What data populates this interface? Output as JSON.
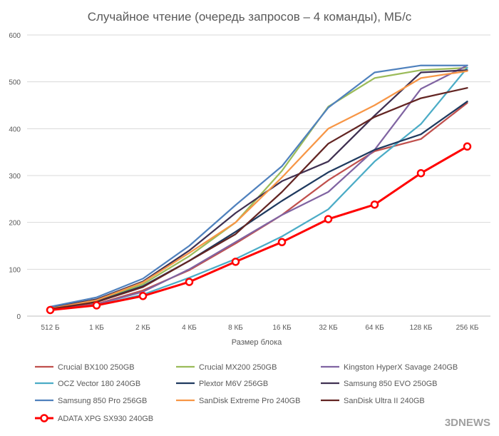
{
  "chart_data": {
    "type": "line",
    "title": "Случайное чтение (очередь запросов – 4 команды), МБ/с",
    "xlabel": "Размер блока",
    "ylabel": "",
    "categories": [
      "512 Б",
      "1 КБ",
      "2 КБ",
      "4 КБ",
      "8 КБ",
      "16 КБ",
      "32 КБ",
      "64 КБ",
      "128 КБ",
      "256 КБ"
    ],
    "ylim": [
      0,
      600
    ],
    "yticks": [
      0,
      100,
      200,
      300,
      400,
      500,
      600
    ],
    "grid": true,
    "legend_position": "bottom",
    "series": [
      {
        "name": "Crucial BX100 250GB",
        "color": "#c0504d",
        "marker": false,
        "values": [
          14,
          26,
          55,
          98,
          155,
          216,
          290,
          352,
          378,
          455
        ]
      },
      {
        "name": "Crucial MX200 250GB",
        "color": "#9bbb59",
        "marker": false,
        "values": [
          17,
          33,
          68,
          128,
          200,
          310,
          447,
          508,
          525,
          530
        ]
      },
      {
        "name": "Kingston HyperX Savage 240GB",
        "color": "#8064a2",
        "marker": false,
        "values": [
          13,
          25,
          52,
          100,
          158,
          216,
          265,
          355,
          485,
          535
        ]
      },
      {
        "name": "OCZ Vector 180 240GB",
        "color": "#4bacc6",
        "marker": false,
        "values": [
          13,
          23,
          46,
          82,
          122,
          170,
          228,
          330,
          410,
          530
        ]
      },
      {
        "name": "Plextor M6V 256GB",
        "color": "#1f3a5f",
        "marker": false,
        "values": [
          16,
          31,
          64,
          118,
          180,
          246,
          307,
          355,
          388,
          458
        ]
      },
      {
        "name": "Samsung 850 EVO 250GB",
        "color": "#403152",
        "marker": false,
        "values": [
          18,
          36,
          74,
          140,
          220,
          288,
          330,
          428,
          520,
          525
        ]
      },
      {
        "name": "Samsung 850 Pro 256GB",
        "color": "#4f81bd",
        "marker": false,
        "values": [
          20,
          40,
          80,
          150,
          237,
          320,
          445,
          520,
          535,
          535
        ]
      },
      {
        "name": "SanDisk Extreme Pro 240GB",
        "color": "#f79646",
        "marker": false,
        "values": [
          16,
          34,
          72,
          135,
          200,
          296,
          400,
          450,
          508,
          523
        ]
      },
      {
        "name": "SanDisk Ultra II 240GB",
        "color": "#632523",
        "marker": false,
        "values": [
          15,
          30,
          62,
          118,
          175,
          265,
          368,
          425,
          465,
          487
        ]
      },
      {
        "name": "ADATA XPG SX930 240GB",
        "color": "#ff0000",
        "marker": true,
        "values": [
          13,
          23,
          43,
          73,
          116,
          158,
          207,
          238,
          305,
          362
        ]
      }
    ]
  },
  "watermark": "3DNEWS"
}
